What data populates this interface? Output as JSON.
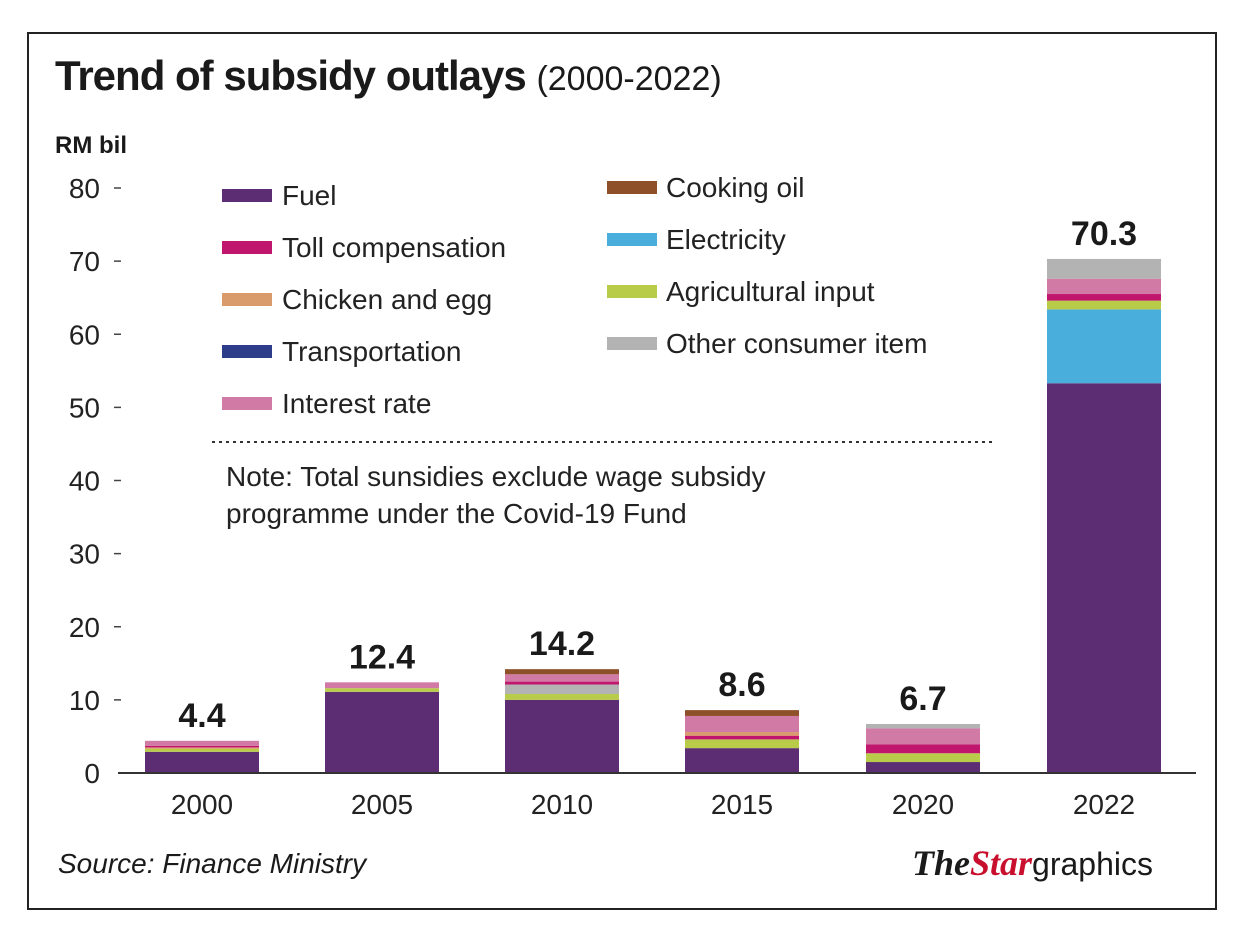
{
  "title": "Trend of subsidy outlays",
  "subtitle": "(2000-2022)",
  "source": "Source: Finance Ministry",
  "logo": {
    "the": "The",
    "star": "Star",
    "graphics": "graphics"
  },
  "note": [
    "Note: Total sunsidies exclude wage subsidy",
    "programme under the Covid-19 Fund"
  ],
  "chart_data": {
    "type": "bar",
    "stacked": true,
    "ylabel": "RM bil",
    "ylim": [
      0,
      80
    ],
    "yticks": [
      0,
      10,
      20,
      30,
      40,
      50,
      60,
      70,
      80
    ],
    "grid": false,
    "legend_placement": "top-left",
    "categories": [
      "2000",
      "2005",
      "2010",
      "2015",
      "2020",
      "2022"
    ],
    "totals": [
      "4.4",
      "12.4",
      "14.2",
      "8.6",
      "6.7",
      "70.3"
    ],
    "series_colors": {
      "Fuel": "#5c2d73",
      "Toll compensation": "#c0166e",
      "Chicken and egg": "#d99a6c",
      "Transportation": "#2e3d8a",
      "Interest rate": "#d27aa6",
      "Cooking oil": "#8e5028",
      "Electricity": "#4aaedc",
      "Agricultural input": "#b9cc4a",
      "Other consumer item": "#b3b3b3"
    },
    "legend": [
      "Fuel",
      "Toll compensation",
      "Chicken and egg",
      "Transportation",
      "Interest rate",
      "Cooking oil",
      "Electricity",
      "Agricultural input",
      "Other consumer item"
    ],
    "stacks": [
      [
        [
          "Fuel",
          2.9
        ],
        [
          "Agricultural input",
          0.4
        ],
        [
          "Chicken and egg",
          0.2
        ],
        [
          "Toll compensation",
          0.2
        ],
        [
          "Interest rate",
          0.7
        ]
      ],
      [
        [
          "Fuel",
          11.1
        ],
        [
          "Agricultural input",
          0.5
        ],
        [
          "Interest rate",
          0.8
        ]
      ],
      [
        [
          "Fuel",
          10.0
        ],
        [
          "Agricultural input",
          0.8
        ],
        [
          "Other consumer item",
          1.3
        ],
        [
          "Toll compensation",
          0.4
        ],
        [
          "Interest rate",
          1.0
        ],
        [
          "Cooking oil",
          0.7
        ]
      ],
      [
        [
          "Fuel",
          3.4
        ],
        [
          "Agricultural input",
          1.2
        ],
        [
          "Toll compensation",
          0.5
        ],
        [
          "Chicken and egg",
          0.5
        ],
        [
          "Interest rate",
          2.2
        ],
        [
          "Cooking oil",
          0.8
        ]
      ],
      [
        [
          "Fuel",
          1.5
        ],
        [
          "Agricultural input",
          1.2
        ],
        [
          "Toll compensation",
          1.2
        ],
        [
          "Interest rate",
          2.2
        ],
        [
          "Other consumer item",
          0.6
        ]
      ],
      [
        [
          "Fuel",
          53.3
        ],
        [
          "Electricity",
          10.1
        ],
        [
          "Agricultural input",
          1.2
        ],
        [
          "Toll compensation",
          0.9
        ],
        [
          "Interest rate",
          2.1
        ],
        [
          "Other consumer item",
          2.7
        ]
      ]
    ]
  }
}
